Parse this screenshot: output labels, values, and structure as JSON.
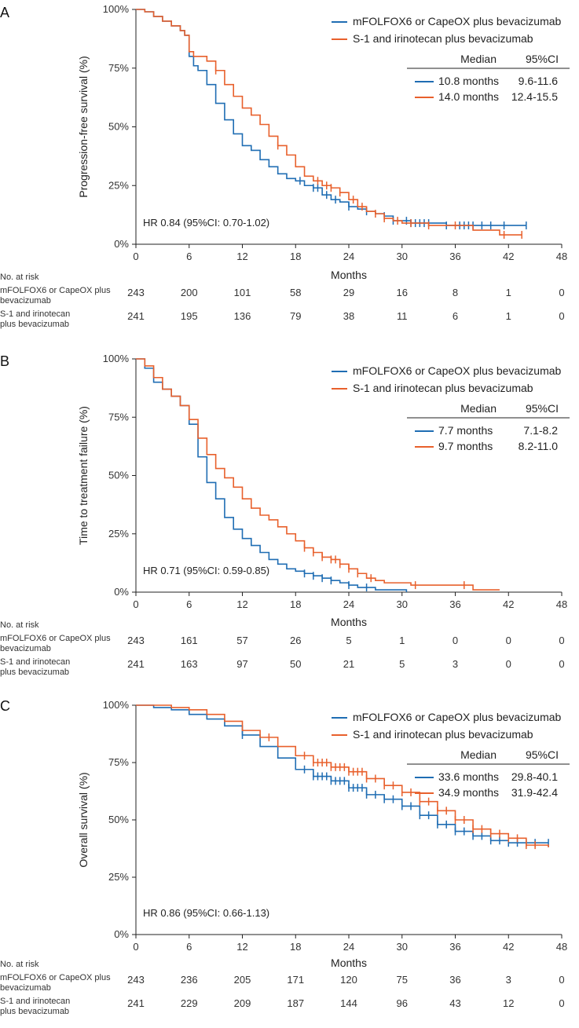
{
  "colors": {
    "blue": "#1f6db3",
    "orange": "#e8602c",
    "axis": "#222222"
  },
  "chart_data": [
    {
      "panel": "A",
      "type": "line",
      "subtype": "kaplan-meier",
      "ylabel": "Progression-free survival (%)",
      "xlabel": "Months",
      "xlim": [
        0,
        48
      ],
      "ylim": [
        0,
        100
      ],
      "xticks": [
        "0",
        "6",
        "12",
        "18",
        "24",
        "30",
        "36",
        "42",
        "48"
      ],
      "yticks": [
        "0%",
        "25%",
        "50%",
        "75%",
        "100%"
      ],
      "hr_text": "HR 0.84 (95%CI: 0.70-1.02)",
      "legend": {
        "header_median": "Median",
        "header_ci": "95%CI",
        "rows": [
          {
            "name": "mFOLFOX6 or CapeOX plus bevacizumab",
            "median": "10.8 months",
            "ci": "9.6-11.6",
            "color": "#1f6db3"
          },
          {
            "name": "S-1 and irinotecan plus bevacizumab",
            "median": "14.0 months",
            "ci": "12.4-15.5",
            "color": "#e8602c"
          }
        ]
      },
      "series": [
        {
          "name": "mFOLFOX6 or CapeOX plus bevacizumab",
          "color": "#1f6db3",
          "x": [
            0,
            1,
            2,
            3,
            4,
            5,
            5.5,
            6,
            6.5,
            7,
            8,
            9,
            10,
            11,
            12,
            13,
            14,
            15,
            16,
            17,
            18,
            19,
            20,
            21,
            22,
            23,
            24,
            25,
            26,
            27,
            28,
            29,
            30,
            31,
            32,
            33,
            34,
            35,
            36,
            38,
            40,
            42,
            44
          ],
          "y": [
            100,
            99,
            97,
            95,
            93,
            91,
            89,
            80,
            76,
            74,
            68,
            60,
            53,
            47,
            42,
            40,
            36,
            33,
            30,
            28,
            27,
            25,
            24,
            21,
            19,
            18,
            16,
            15,
            14,
            13,
            12,
            10,
            10,
            9,
            9,
            9,
            9,
            8,
            8,
            8,
            8,
            8,
            8
          ],
          "censor": [
            18.5,
            20,
            20.5,
            21.5,
            22.5,
            24,
            26,
            28,
            29,
            30.5,
            31,
            31.5,
            32,
            32.5,
            33,
            35,
            36.5,
            37,
            37.5,
            38,
            39,
            40,
            41.5,
            44
          ]
        },
        {
          "name": "S-1 and irinotecan plus bevacizumab",
          "color": "#e8602c",
          "x": [
            0,
            1,
            2,
            3,
            4,
            5,
            5.5,
            6,
            6.5,
            7,
            8,
            9,
            10,
            11,
            12,
            13,
            14,
            15,
            16,
            17,
            18,
            19,
            20,
            21,
            22,
            23,
            24,
            25,
            26,
            27,
            28,
            29,
            30,
            31,
            32,
            33,
            34,
            35,
            36,
            37,
            38,
            39,
            40,
            41,
            42,
            43.5
          ],
          "y": [
            100,
            99,
            97,
            95,
            93,
            91,
            89,
            82,
            80,
            80,
            78,
            74,
            68,
            63,
            58,
            55,
            51,
            46,
            42,
            38,
            33,
            29,
            27,
            25,
            24,
            22,
            19,
            16,
            14,
            13,
            11,
            10,
            9,
            9,
            9,
            8,
            8,
            8,
            8,
            8,
            6,
            6,
            6,
            4,
            4,
            4
          ],
          "censor": [
            9,
            16,
            20.5,
            21.5,
            22,
            23,
            24.5,
            25.5,
            27,
            28,
            29.5,
            31,
            33,
            36,
            41.5,
            43.5
          ]
        }
      ],
      "risk_table": {
        "title": "No. at risk",
        "rows": [
          {
            "label1": "mFOLFOX6 or CapeOX plus",
            "label2": "bevacizumab",
            "values": [
              "243",
              "200",
              "101",
              "58",
              "29",
              "16",
              "8",
              "1",
              "0"
            ]
          },
          {
            "label1": "S-1 and irinotecan",
            "label2": "plus bevacizumab",
            "values": [
              "241",
              "195",
              "136",
              "79",
              "38",
              "11",
              "6",
              "1",
              "0"
            ]
          }
        ]
      }
    },
    {
      "panel": "B",
      "type": "line",
      "subtype": "kaplan-meier",
      "ylabel": "Time to treatment failure (%)",
      "xlabel": "Months",
      "xlim": [
        0,
        48
      ],
      "ylim": [
        0,
        100
      ],
      "xticks": [
        "0",
        "6",
        "12",
        "18",
        "24",
        "30",
        "36",
        "42",
        "48"
      ],
      "yticks": [
        "0%",
        "25%",
        "50%",
        "75%",
        "100%"
      ],
      "hr_text": "HR 0.71 (95%CI: 0.59-0.85)",
      "legend": {
        "header_median": "Median",
        "header_ci": "95%CI",
        "rows": [
          {
            "name": "mFOLFOX6 or CapeOX plus bevacizumab",
            "median": "7.7 months",
            "ci": "7.1-8.2",
            "color": "#1f6db3"
          },
          {
            "name": "S-1 and irinotecan plus bevacizumab",
            "median": "9.7 months",
            "ci": "8.2-11.0",
            "color": "#e8602c"
          }
        ]
      },
      "series": [
        {
          "name": "mFOLFOX6 or CapeOX plus bevacizumab",
          "color": "#1f6db3",
          "x": [
            0,
            1,
            2,
            3,
            4,
            5,
            6,
            7,
            8,
            9,
            10,
            11,
            12,
            13,
            14,
            15,
            16,
            17,
            18,
            19,
            20,
            21,
            22,
            23,
            24,
            25,
            26,
            27,
            28,
            29,
            30.5
          ],
          "y": [
            100,
            96,
            90,
            87,
            84,
            80,
            72,
            58,
            47,
            40,
            32,
            27,
            23,
            20,
            17,
            14,
            12,
            10,
            9,
            8,
            7,
            6,
            5,
            4,
            3,
            2,
            2,
            1,
            1,
            1,
            0
          ],
          "censor": [
            19,
            20,
            21,
            22,
            24,
            26
          ]
        },
        {
          "name": "S-1 and irinotecan plus bevacizumab",
          "color": "#e8602c",
          "x": [
            0,
            1,
            2,
            3,
            4,
            5,
            6,
            7,
            8,
            9,
            10,
            11,
            12,
            13,
            14,
            15,
            16,
            17,
            18,
            19,
            20,
            21,
            22,
            23,
            24,
            25,
            26,
            27,
            28,
            29,
            30,
            31,
            32,
            33,
            34,
            35,
            36,
            37,
            38,
            39,
            40,
            41
          ],
          "y": [
            100,
            97,
            92,
            87,
            84,
            80,
            74,
            66,
            59,
            53,
            49,
            45,
            40,
            36,
            33,
            31,
            28,
            25,
            22,
            19,
            17,
            15,
            14,
            12,
            10,
            8,
            6,
            5,
            4,
            4,
            4,
            3,
            3,
            3,
            3,
            3,
            3,
            3,
            1,
            1,
            1,
            1
          ],
          "censor": [
            19,
            20,
            21,
            22,
            22.5,
            23,
            24,
            25,
            26.5,
            31.5,
            37
          ]
        }
      ],
      "risk_table": {
        "title": "No. at risk",
        "rows": [
          {
            "label1": "mFOLFOX6 or CapeOX plus",
            "label2": "bevacizumab",
            "values": [
              "243",
              "161",
              "57",
              "26",
              "5",
              "1",
              "0",
              "0",
              "0"
            ]
          },
          {
            "label1": "S-1 and irinotecan",
            "label2": "plus bevacizumab",
            "values": [
              "241",
              "163",
              "97",
              "50",
              "21",
              "5",
              "3",
              "0",
              "0"
            ]
          }
        ]
      }
    },
    {
      "panel": "C",
      "type": "line",
      "subtype": "kaplan-meier",
      "ylabel": "Overall survival (%)",
      "xlabel": "Months",
      "xlim": [
        0,
        48
      ],
      "ylim": [
        0,
        100
      ],
      "xticks": [
        "0",
        "6",
        "12",
        "18",
        "24",
        "30",
        "36",
        "42",
        "48"
      ],
      "yticks": [
        "0%",
        "25%",
        "50%",
        "75%",
        "100%"
      ],
      "hr_text": "HR 0.86 (95%CI: 0.66-1.13)",
      "legend": {
        "header_median": "Median",
        "header_ci": "95%CI",
        "rows": [
          {
            "name": "mFOLFOX6 or CapeOX plus bevacizumab",
            "median": "33.6 months",
            "ci": "29.8-40.1",
            "color": "#1f6db3"
          },
          {
            "name": "S-1 and irinotecan plus bevacizumab",
            "median": "34.9 months",
            "ci": "31.9-42.4",
            "color": "#e8602c"
          }
        ]
      },
      "series": [
        {
          "name": "mFOLFOX6 or CapeOX plus bevacizumab",
          "color": "#1f6db3",
          "x": [
            0,
            2,
            4,
            6,
            8,
            10,
            12,
            14,
            16,
            18,
            20,
            22,
            24,
            26,
            28,
            30,
            32,
            34,
            36,
            38,
            40,
            42,
            44,
            46.5
          ],
          "y": [
            100,
            99,
            98,
            96,
            94,
            91,
            87,
            82,
            77,
            72,
            69,
            67,
            64,
            61,
            59,
            56,
            52,
            48,
            45,
            43,
            41,
            40,
            40,
            40
          ],
          "censor": [
            12,
            19,
            20,
            20.5,
            21,
            21.5,
            22,
            22.5,
            23,
            23.5,
            24,
            24.5,
            25,
            25.5,
            26,
            27,
            28,
            29,
            30,
            31,
            32,
            33,
            34,
            35,
            36,
            37,
            38,
            39,
            40,
            41,
            42,
            43,
            44,
            45,
            46.5
          ]
        },
        {
          "name": "S-1 and irinotecan plus bevacizumab",
          "color": "#e8602c",
          "x": [
            0,
            2,
            4,
            6,
            8,
            10,
            12,
            14,
            16,
            18,
            20,
            22,
            24,
            26,
            28,
            30,
            32,
            34,
            36,
            38,
            40,
            42,
            44,
            46.5
          ],
          "y": [
            100,
            100,
            99,
            98,
            96,
            93,
            89,
            86,
            82,
            78,
            75,
            73,
            71,
            68,
            65,
            62,
            58,
            54,
            50,
            46,
            44,
            42,
            39,
            38
          ],
          "censor": [
            15,
            19,
            20,
            20.5,
            21,
            21.5,
            22,
            22.5,
            23,
            23.5,
            24,
            24.5,
            25,
            25.5,
            26,
            27,
            28,
            29,
            30,
            31,
            32,
            33,
            34,
            35,
            36,
            37,
            38,
            39,
            40,
            41,
            42,
            43,
            44,
            45
          ]
        }
      ],
      "risk_table": {
        "title": "No. at risk",
        "rows": [
          {
            "label1": "mFOLFOX6 or CapeOX plus",
            "label2": "bevacizumab",
            "values": [
              "243",
              "236",
              "205",
              "171",
              "120",
              "75",
              "36",
              "3",
              "0"
            ]
          },
          {
            "label1": "S-1 and irinotecan",
            "label2": "plus bevacizumab",
            "values": [
              "241",
              "229",
              "209",
              "187",
              "144",
              "96",
              "43",
              "12",
              "0"
            ]
          }
        ]
      }
    }
  ]
}
